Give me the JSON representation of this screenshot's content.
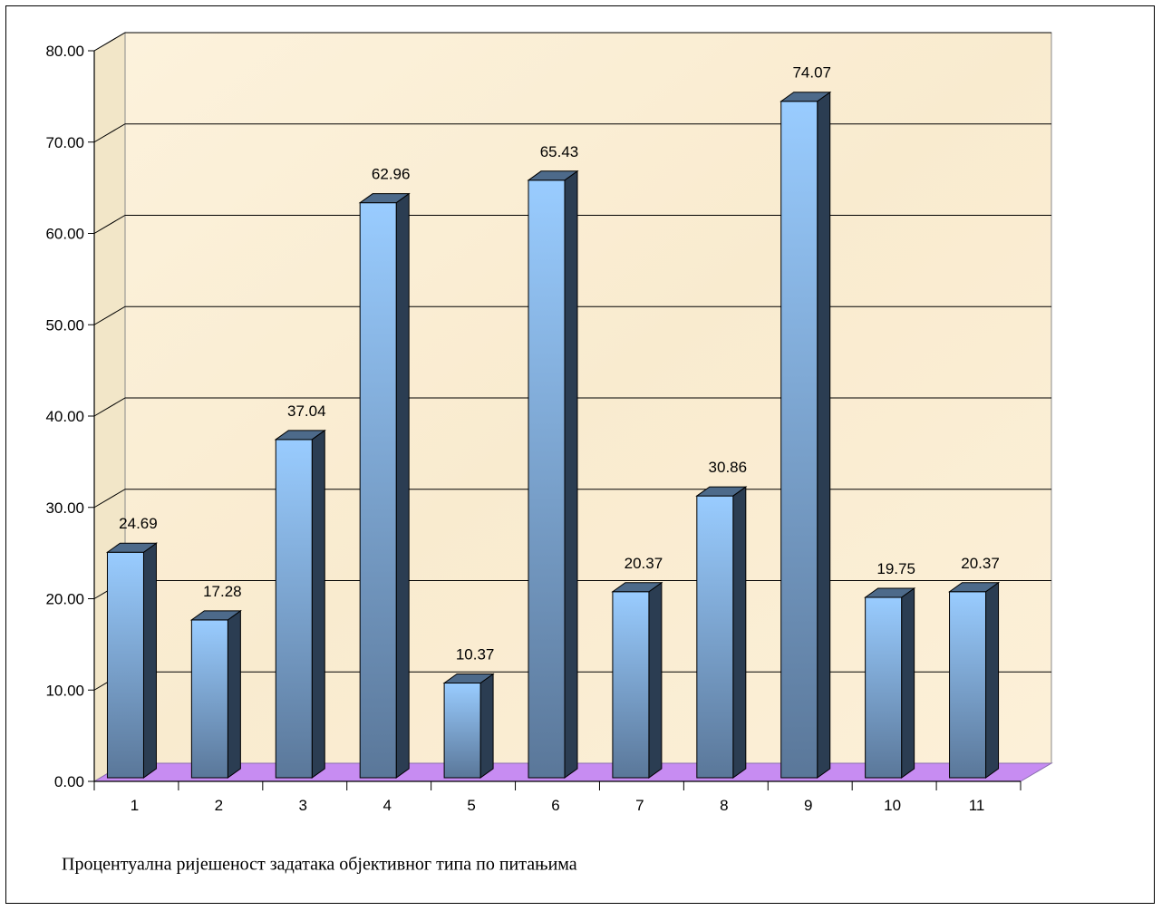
{
  "chart_data": {
    "type": "bar",
    "categories": [
      "1",
      "2",
      "3",
      "4",
      "5",
      "6",
      "7",
      "8",
      "9",
      "10",
      "11"
    ],
    "values": [
      24.69,
      17.28,
      37.04,
      62.96,
      10.37,
      65.43,
      20.37,
      30.86,
      74.07,
      19.75,
      20.37
    ],
    "data_labels": [
      "24.69",
      "17.28",
      "37.04",
      "62.96",
      "10.37",
      "65.43",
      "20.37",
      "30.86",
      "74.07",
      "19.75",
      "20.37"
    ],
    "y_ticks": [
      "0.00",
      "10.00",
      "20.00",
      "30.00",
      "40.00",
      "50.00",
      "60.00",
      "70.00",
      "80.00"
    ],
    "ylim": [
      0,
      80
    ],
    "grid": true,
    "title": "",
    "xlabel": "",
    "ylabel": "",
    "caption": "Процентуална ријешеност задатака објективног типа по питањима",
    "colors": {
      "wall": "#fbf0d6",
      "floor": "#c78cf2",
      "bar_top": "#99ccff",
      "bar_bottom": "#5a7799",
      "bar_side": "#2b3d52",
      "bar_cap": "#4d6a8a"
    }
  }
}
